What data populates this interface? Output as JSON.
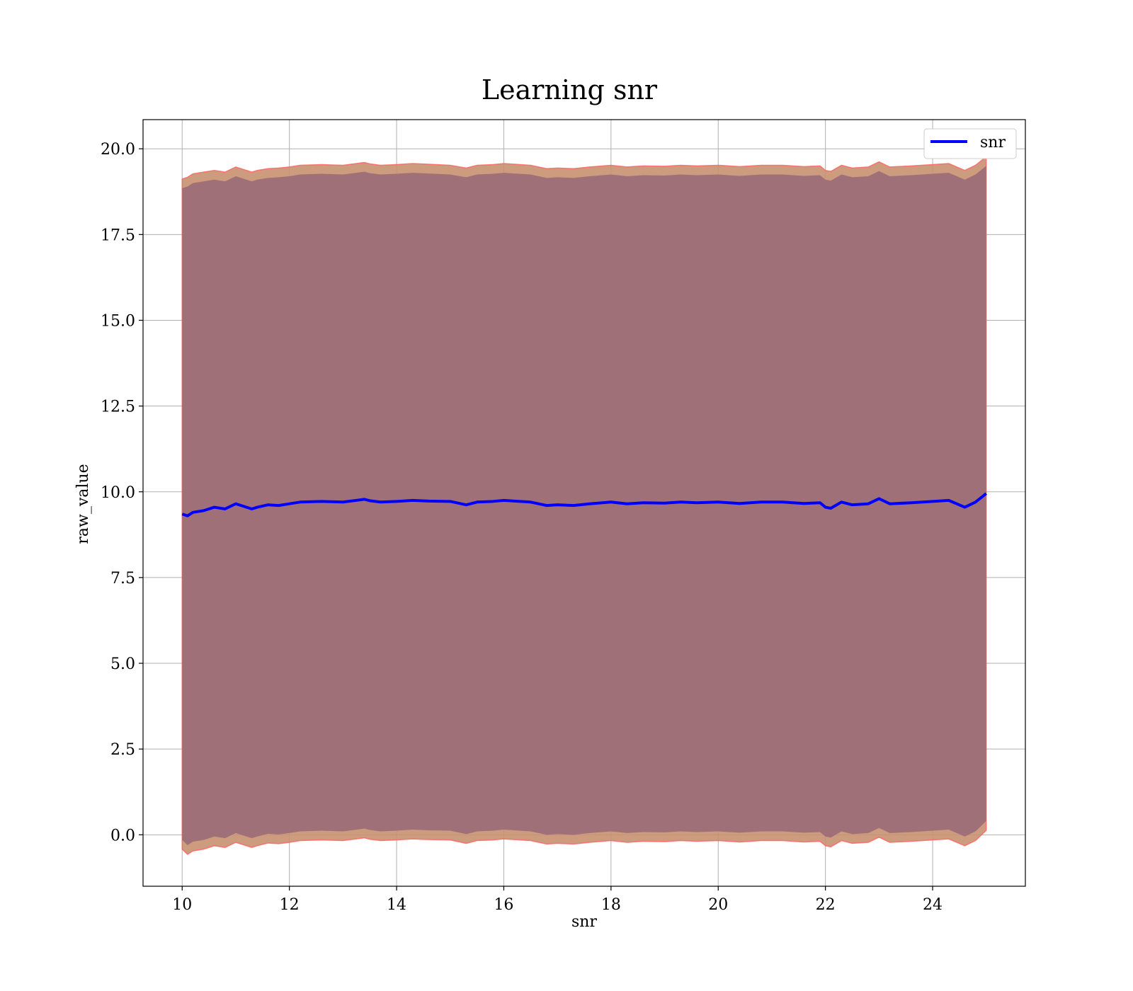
{
  "chart_data": {
    "type": "line",
    "title": "Learning snr",
    "xlabel": "snr",
    "ylabel": "raw_value",
    "xlim": [
      9.27,
      25.73
    ],
    "ylim": [
      -1.5,
      20.85
    ],
    "xticks": [
      10,
      12,
      14,
      16,
      18,
      20,
      22,
      24
    ],
    "yticks": [
      0.0,
      2.5,
      5.0,
      7.5,
      10.0,
      12.5,
      15.0,
      17.5,
      20.0
    ],
    "xtick_labels": [
      "10",
      "12",
      "14",
      "16",
      "18",
      "20",
      "22",
      "24"
    ],
    "ytick_labels": [
      "0.0",
      "2.5",
      "5.0",
      "7.5",
      "10.0",
      "12.5",
      "15.0",
      "17.5",
      "20.0"
    ],
    "grid": true,
    "legend_position": "top-right",
    "series": [
      {
        "name": "snr",
        "color": "#0000ff",
        "x": [
          10.0,
          10.1,
          10.2,
          10.4,
          10.6,
          10.8,
          11.0,
          11.1,
          11.3,
          11.4,
          11.6,
          11.8,
          12.0,
          12.2,
          12.6,
          13.0,
          13.4,
          13.5,
          13.7,
          14.0,
          14.3,
          14.6,
          15.0,
          15.3,
          15.5,
          15.8,
          16.0,
          16.2,
          16.5,
          16.8,
          17.0,
          17.3,
          17.6,
          18.0,
          18.3,
          18.6,
          19.0,
          19.3,
          19.6,
          20.0,
          20.4,
          20.8,
          21.2,
          21.6,
          21.9,
          22.0,
          22.1,
          22.3,
          22.5,
          22.8,
          23.0,
          23.2,
          23.6,
          24.0,
          24.3,
          24.6,
          24.8,
          25.0
        ],
        "y": [
          9.35,
          9.3,
          9.4,
          9.45,
          9.55,
          9.5,
          9.65,
          9.6,
          9.5,
          9.55,
          9.62,
          9.6,
          9.65,
          9.7,
          9.72,
          9.7,
          9.78,
          9.74,
          9.7,
          9.72,
          9.75,
          9.73,
          9.72,
          9.62,
          9.7,
          9.72,
          9.75,
          9.73,
          9.7,
          9.6,
          9.62,
          9.6,
          9.65,
          9.7,
          9.65,
          9.68,
          9.67,
          9.7,
          9.68,
          9.7,
          9.66,
          9.7,
          9.7,
          9.66,
          9.68,
          9.55,
          9.52,
          9.7,
          9.62,
          9.65,
          9.8,
          9.65,
          9.68,
          9.72,
          9.75,
          9.55,
          9.7,
          9.95
        ],
        "band_upper": [
          19.0,
          19.05,
          19.15,
          19.2,
          19.25,
          19.2,
          19.35,
          19.3,
          19.2,
          19.25,
          19.3,
          19.32,
          19.35,
          19.4,
          19.42,
          19.4,
          19.48,
          19.44,
          19.4,
          19.42,
          19.45,
          19.43,
          19.4,
          19.32,
          19.4,
          19.42,
          19.45,
          19.43,
          19.4,
          19.3,
          19.32,
          19.3,
          19.35,
          19.4,
          19.35,
          19.38,
          19.37,
          19.4,
          19.38,
          19.4,
          19.36,
          19.4,
          19.4,
          19.36,
          19.38,
          19.25,
          19.22,
          19.4,
          19.32,
          19.35,
          19.5,
          19.35,
          19.38,
          19.42,
          19.45,
          19.25,
          19.4,
          19.65
        ],
        "band_lower": [
          -0.3,
          -0.45,
          -0.35,
          -0.3,
          -0.2,
          -0.25,
          -0.1,
          -0.15,
          -0.25,
          -0.2,
          -0.12,
          -0.14,
          -0.1,
          -0.05,
          -0.03,
          -0.05,
          0.03,
          -0.01,
          -0.05,
          -0.03,
          0.0,
          -0.02,
          -0.03,
          -0.13,
          -0.05,
          -0.03,
          0.0,
          -0.02,
          -0.05,
          -0.15,
          -0.13,
          -0.15,
          -0.1,
          -0.05,
          -0.1,
          -0.07,
          -0.08,
          -0.05,
          -0.07,
          -0.05,
          -0.09,
          -0.05,
          -0.05,
          -0.09,
          -0.07,
          -0.2,
          -0.23,
          -0.05,
          -0.13,
          -0.1,
          0.05,
          -0.1,
          -0.07,
          -0.03,
          0.0,
          -0.2,
          -0.05,
          0.25
        ]
      }
    ]
  }
}
